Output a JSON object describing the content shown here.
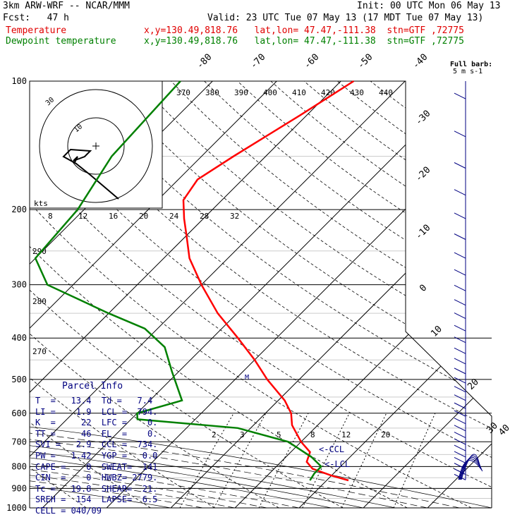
{
  "header": {
    "model": "3km ARW-WRF -- NCAR/MMM",
    "init": "Init: 00 UTC Mon 06 May 13",
    "fcst": "Fcst:   47 h",
    "valid": "Valid: 23 UTC Tue 07 May 13 (17 MDT Tue 07 May 13)",
    "temperature_label": "Temperature",
    "temperature_loc": "x,y=130.49,818.76   lat,lon= 47.47,-111.38  stn=GTF ,72775",
    "dewpoint_label": "Dewpoint temperature",
    "dewpoint_loc": "x,y=130.49,818.76   lat,lon= 47.47,-111.38  stn=GTF ,72775",
    "barb_legend": "Full barb:",
    "barb_units": "5 m s-1"
  },
  "parcel_info": {
    "title": "Parcel Info",
    "rows": [
      "T  =   13.4  Td =   7.4",
      "LI =    1.9  LCL =  794.",
      "K  =     22  LFC =    0.",
      "TT =     46  EL  =    0.",
      "SVI =   2.9  CCL =  734.",
      "PW =   1.42  YGP =   0.0",
      "CAPE =    0  SWEAT=  141",
      "CIN  =    0  HWBZ= 2779.",
      "Tc =   19.8  SHEAR=  21.",
      "SREH =  154  LAPSE=  6.5",
      "CELL = 040/09"
    ]
  },
  "annotations": {
    "ccl": "<-CCL",
    "lcl": "<-LCL",
    "m_label": "M",
    "kts": "kts"
  },
  "colors": {
    "temperature": "#ff0000",
    "dewpoint": "#008000",
    "barbs": "#000080",
    "grid": "#000000"
  },
  "chart_data": {
    "type": "line",
    "diagram": "skew-T log-P",
    "pressure_levels": [
      100,
      200,
      300,
      400,
      500,
      600,
      700,
      800,
      900,
      1000
    ],
    "isotherm_labels": [
      -80,
      -70,
      -60,
      -50,
      -40,
      -30,
      -20,
      -10,
      0,
      10,
      20,
      30,
      40
    ],
    "theta_labels": [
      370,
      380,
      390,
      400,
      410,
      420,
      430,
      440
    ],
    "mixing_ratio_labels": [
      2,
      3,
      5,
      8,
      12,
      20
    ],
    "theta_e_labels": [
      290,
      280,
      270
    ],
    "hodograph_speed_labels": [
      8,
      12,
      16,
      20,
      24,
      28,
      32
    ],
    "hodograph_ring_labels": [
      "30",
      "10"
    ],
    "series": [
      {
        "name": "Temperature",
        "points": [
          {
            "p": 100,
            "t": -48
          },
          {
            "p": 120,
            "t": -51
          },
          {
            "p": 150,
            "t": -55
          },
          {
            "p": 170,
            "t": -57
          },
          {
            "p": 190,
            "t": -56
          },
          {
            "p": 210,
            "t": -53
          },
          {
            "p": 230,
            "t": -50
          },
          {
            "p": 260,
            "t": -46
          },
          {
            "p": 300,
            "t": -40
          },
          {
            "p": 350,
            "t": -33
          },
          {
            "p": 400,
            "t": -26
          },
          {
            "p": 450,
            "t": -20
          },
          {
            "p": 500,
            "t": -15
          },
          {
            "p": 560,
            "t": -9
          },
          {
            "p": 600,
            "t": -6
          },
          {
            "p": 640,
            "t": -4
          },
          {
            "p": 700,
            "t": 0
          },
          {
            "p": 740,
            "t": 3
          },
          {
            "p": 780,
            "t": 4
          },
          {
            "p": 810,
            "t": 6
          },
          {
            "p": 840,
            "t": 10
          },
          {
            "p": 862,
            "t": 13.4
          }
        ]
      },
      {
        "name": "Dewpoint temperature",
        "points": [
          {
            "p": 100,
            "t": -75
          },
          {
            "p": 150,
            "t": -74
          },
          {
            "p": 200,
            "t": -71
          },
          {
            "p": 260,
            "t": -70
          },
          {
            "p": 300,
            "t": -64
          },
          {
            "p": 350,
            "t": -50
          },
          {
            "p": 380,
            "t": -42
          },
          {
            "p": 420,
            "t": -36
          },
          {
            "p": 480,
            "t": -31
          },
          {
            "p": 560,
            "t": -25
          },
          {
            "p": 600,
            "t": -30
          },
          {
            "p": 620,
            "t": -29
          },
          {
            "p": 650,
            "t": -12
          },
          {
            "p": 700,
            "t": -2
          },
          {
            "p": 760,
            "t": 4
          },
          {
            "p": 800,
            "t": 7
          },
          {
            "p": 830,
            "t": 7
          },
          {
            "p": 862,
            "t": 7.4
          }
        ]
      }
    ],
    "wind_barbs": [
      {
        "p": 100,
        "speed_kt": 0
      },
      {
        "p": 200,
        "speed_kt": 10
      },
      {
        "p": 300,
        "speed_kt": 10
      },
      {
        "p": 400,
        "speed_kt": 10
      },
      {
        "p": 500,
        "speed_kt": 10
      },
      {
        "p": 600,
        "speed_kt": 10
      },
      {
        "p": 700,
        "speed_kt": 5
      },
      {
        "p": 800,
        "speed_kt": 5
      }
    ],
    "xlim_temp_at_1000": [
      -32,
      40
    ],
    "ylim_pressure": [
      1000,
      100
    ],
    "y_scale": "log"
  }
}
